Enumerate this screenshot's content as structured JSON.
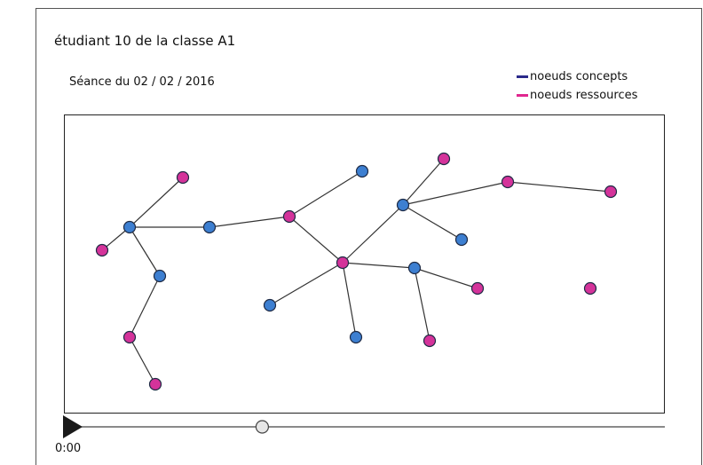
{
  "header": {
    "title": "étudiant 10 de la classe A1",
    "session": "Séance du  02 / 02 / 2016"
  },
  "legend": {
    "items": [
      {
        "label": "noeuds concepts",
        "color": "#2b2a8a"
      },
      {
        "label": "noeuds ressources",
        "color": "#e0278f"
      }
    ]
  },
  "colors": {
    "concept_fill": "#3d7fd1",
    "resource_fill": "#d4339a",
    "edge": "#333333"
  },
  "graph": {
    "nodes": [
      {
        "id": "c1",
        "type": "concept"
      },
      {
        "id": "c2",
        "type": "concept"
      },
      {
        "id": "c3",
        "type": "concept"
      },
      {
        "id": "c4",
        "type": "concept"
      },
      {
        "id": "c5",
        "type": "concept"
      },
      {
        "id": "c6",
        "type": "concept"
      },
      {
        "id": "c7",
        "type": "concept"
      },
      {
        "id": "c8",
        "type": "concept"
      },
      {
        "id": "c9",
        "type": "concept"
      },
      {
        "id": "r1",
        "type": "resource"
      },
      {
        "id": "r2",
        "type": "resource"
      },
      {
        "id": "r3",
        "type": "resource"
      },
      {
        "id": "r4",
        "type": "resource"
      },
      {
        "id": "r5",
        "type": "resource"
      },
      {
        "id": "r6",
        "type": "resource"
      },
      {
        "id": "r7",
        "type": "resource"
      },
      {
        "id": "r8",
        "type": "resource"
      },
      {
        "id": "r9",
        "type": "resource"
      },
      {
        "id": "r10",
        "type": "resource"
      },
      {
        "id": "r11",
        "type": "resource"
      },
      {
        "id": "r12",
        "type": "resource"
      }
    ],
    "edges": [
      [
        "c1",
        "r1"
      ],
      [
        "c1",
        "r2"
      ],
      [
        "c1",
        "c2"
      ],
      [
        "c1",
        "c3"
      ],
      [
        "c3",
        "r3"
      ],
      [
        "r3",
        "r4"
      ],
      [
        "c2",
        "r5"
      ],
      [
        "r5",
        "c4"
      ],
      [
        "r5",
        "r6"
      ],
      [
        "r6",
        "c5"
      ],
      [
        "r6",
        "c6"
      ],
      [
        "r6",
        "c7"
      ],
      [
        "r6",
        "c8"
      ],
      [
        "c5",
        "r7"
      ],
      [
        "c5",
        "r8"
      ],
      [
        "c5",
        "c9"
      ],
      [
        "r8",
        "r9"
      ],
      [
        "c8",
        "r10"
      ],
      [
        "c8",
        "r11"
      ]
    ]
  },
  "player": {
    "time": "0:00",
    "progress": 0.33
  }
}
